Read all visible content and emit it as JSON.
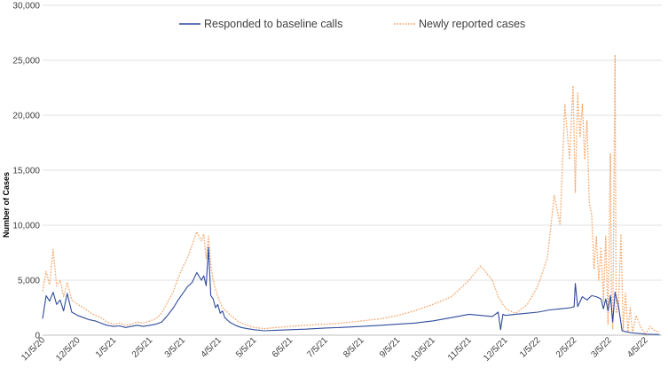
{
  "chart_data": {
    "type": "line",
    "title": "",
    "xlabel": "",
    "ylabel": "Number of Cases",
    "ylim": [
      0,
      30000
    ],
    "yticks": [
      0,
      5000,
      10000,
      15000,
      20000,
      25000,
      30000
    ],
    "ytick_labels": [
      "0",
      "5,000",
      "10,000",
      "15,000",
      "20,000",
      "25,000",
      "30,000"
    ],
    "xlim": [
      0,
      530
    ],
    "xticks": [
      0,
      30,
      61,
      92,
      120,
      151,
      181,
      212,
      242,
      273,
      304,
      334,
      365,
      396,
      424,
      455,
      485,
      516
    ],
    "xtick_labels": [
      "11/5/20",
      "12/5/20",
      "1/5/21",
      "2/5/21",
      "3/5/21",
      "4/5/21",
      "5/5/21",
      "6/5/21",
      "7/5/21",
      "8/5/21",
      "9/5/21",
      "10/5/21",
      "11/5/21",
      "12/5/21",
      "1/5/22",
      "2/5/22",
      "3/5/22",
      "4/5/22"
    ],
    "x_unit": "days since 11/5/20",
    "legend": "top-center",
    "series": [
      {
        "name": "Responded to baseline calls",
        "color": "#2f4b9b",
        "style": "solid",
        "x": [
          0,
          3,
          6,
          9,
          12,
          15,
          18,
          21,
          25,
          30,
          35,
          40,
          45,
          50,
          55,
          61,
          66,
          71,
          76,
          81,
          86,
          92,
          97,
          102,
          107,
          112,
          116,
          120,
          124,
          128,
          132,
          136,
          138,
          140,
          142,
          144,
          146,
          148,
          150,
          152,
          154,
          156,
          160,
          165,
          170,
          175,
          181,
          190,
          200,
          212,
          225,
          242,
          255,
          273,
          290,
          304,
          318,
          334,
          350,
          365,
          375,
          385,
          390,
          392,
          394,
          396,
          405,
          415,
          424,
          434,
          444,
          452,
          455,
          456,
          458,
          462,
          466,
          470,
          474,
          478,
          480,
          482,
          484,
          486,
          488,
          490,
          493,
          496,
          500,
          505,
          510,
          516,
          522,
          528
        ],
        "y": [
          1500,
          3600,
          3100,
          3900,
          2800,
          3200,
          2200,
          3800,
          2100,
          1800,
          1600,
          1400,
          1300,
          1100,
          900,
          800,
          850,
          700,
          800,
          900,
          800,
          900,
          1000,
          1200,
          1800,
          2500,
          3200,
          3800,
          4400,
          4800,
          5700,
          5000,
          5400,
          4500,
          8000,
          3600,
          3300,
          2500,
          2800,
          2000,
          2200,
          1600,
          1200,
          900,
          700,
          600,
          500,
          400,
          450,
          500,
          550,
          650,
          700,
          800,
          900,
          1000,
          1100,
          1300,
          1600,
          1900,
          1800,
          1700,
          2100,
          500,
          1900,
          1800,
          1900,
          2000,
          2100,
          2300,
          2400,
          2500,
          2600,
          4700,
          2600,
          3500,
          3200,
          3600,
          3500,
          3300,
          2400,
          3300,
          2200,
          3600,
          1200,
          3900,
          2600,
          400,
          300,
          200,
          150,
          100,
          80,
          60
        ]
      },
      {
        "name": "Newly reported cases",
        "color": "#f4a263",
        "style": "dotted",
        "x": [
          0,
          3,
          6,
          9,
          12,
          15,
          18,
          21,
          25,
          30,
          35,
          40,
          45,
          50,
          55,
          61,
          66,
          71,
          76,
          81,
          86,
          92,
          97,
          102,
          107,
          112,
          116,
          120,
          124,
          128,
          132,
          136,
          138,
          140,
          142,
          144,
          146,
          148,
          150,
          154,
          158,
          162,
          168,
          175,
          181,
          190,
          200,
          212,
          225,
          242,
          255,
          273,
          290,
          304,
          318,
          334,
          350,
          365,
          375,
          385,
          390,
          394,
          398,
          405,
          415,
          424,
          432,
          438,
          443,
          447,
          451,
          454,
          456,
          458,
          460,
          462,
          464,
          466,
          468,
          470,
          472,
          474,
          476,
          478,
          480,
          482,
          484,
          486,
          487,
          488,
          490,
          491,
          493,
          495,
          497,
          499,
          501,
          503,
          505,
          508,
          512,
          516,
          520,
          524,
          528
        ],
        "y": [
          4000,
          5800,
          4600,
          7800,
          4500,
          5000,
          3500,
          4800,
          3200,
          2800,
          2500,
          2100,
          1800,
          1600,
          1200,
          1000,
          1100,
          900,
          1000,
          1200,
          1100,
          1300,
          1500,
          2000,
          3000,
          4000,
          5200,
          6200,
          7000,
          8200,
          9400,
          8600,
          9200,
          7000,
          9000,
          6500,
          5000,
          4200,
          3500,
          2500,
          2100,
          1700,
          1200,
          900,
          700,
          600,
          700,
          800,
          900,
          1000,
          1100,
          1300,
          1500,
          1800,
          2200,
          2800,
          3500,
          5000,
          6300,
          5000,
          3500,
          2800,
          2300,
          2000,
          2800,
          4500,
          7000,
          12700,
          10000,
          21000,
          16000,
          22700,
          13000,
          22000,
          18000,
          21000,
          16000,
          19500,
          12000,
          11000,
          6000,
          9000,
          5000,
          8000,
          3000,
          9000,
          1000,
          16500,
          2000,
          600,
          25500,
          2000,
          2800,
          9200,
          500,
          3800,
          300,
          2500,
          200,
          1800,
          700,
          100,
          800,
          400,
          300
        ]
      }
    ]
  }
}
